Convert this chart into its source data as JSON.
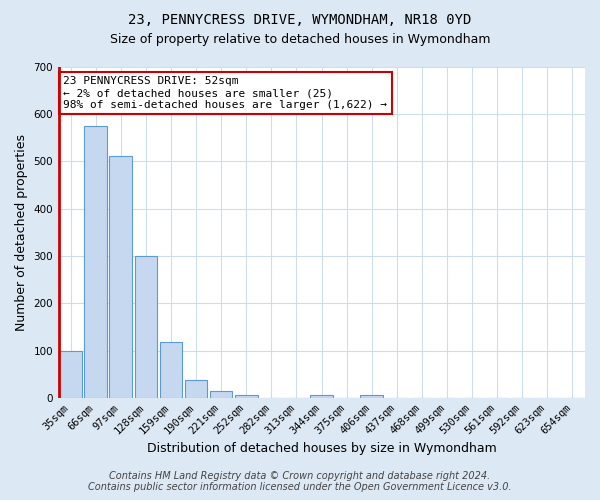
{
  "title": "23, PENNYCRESS DRIVE, WYMONDHAM, NR18 0YD",
  "subtitle": "Size of property relative to detached houses in Wymondham",
  "xlabel": "Distribution of detached houses by size in Wymondham",
  "ylabel": "Number of detached properties",
  "categories": [
    "35sqm",
    "66sqm",
    "97sqm",
    "128sqm",
    "159sqm",
    "190sqm",
    "221sqm",
    "252sqm",
    "282sqm",
    "313sqm",
    "344sqm",
    "375sqm",
    "406sqm",
    "437sqm",
    "468sqm",
    "499sqm",
    "530sqm",
    "561sqm",
    "592sqm",
    "623sqm",
    "654sqm"
  ],
  "values": [
    100,
    575,
    510,
    300,
    118,
    38,
    15,
    7,
    0,
    0,
    7,
    0,
    7,
    0,
    0,
    0,
    0,
    0,
    0,
    0,
    0
  ],
  "bar_color": "#c5d8f0",
  "bar_edge_color": "#5b9bd5",
  "highlight_color": "#cc0000",
  "ylim": [
    0,
    700
  ],
  "yticks": [
    0,
    100,
    200,
    300,
    400,
    500,
    600,
    700
  ],
  "annotation_text": "23 PENNYCRESS DRIVE: 52sqm\n← 2% of detached houses are smaller (25)\n98% of semi-detached houses are larger (1,622) →",
  "annotation_box_color": "#ffffff",
  "annotation_box_edge": "#cc0000",
  "footer_line1": "Contains HM Land Registry data © Crown copyright and database right 2024.",
  "footer_line2": "Contains public sector information licensed under the Open Government Licence v3.0.",
  "bg_color": "#dde8f5",
  "plot_bg_color": "#ffffff",
  "grid_color": "#ccddee",
  "title_fontsize": 10,
  "subtitle_fontsize": 9,
  "axis_label_fontsize": 9,
  "tick_fontsize": 7.5,
  "footer_fontsize": 7,
  "annotation_fontsize": 8
}
